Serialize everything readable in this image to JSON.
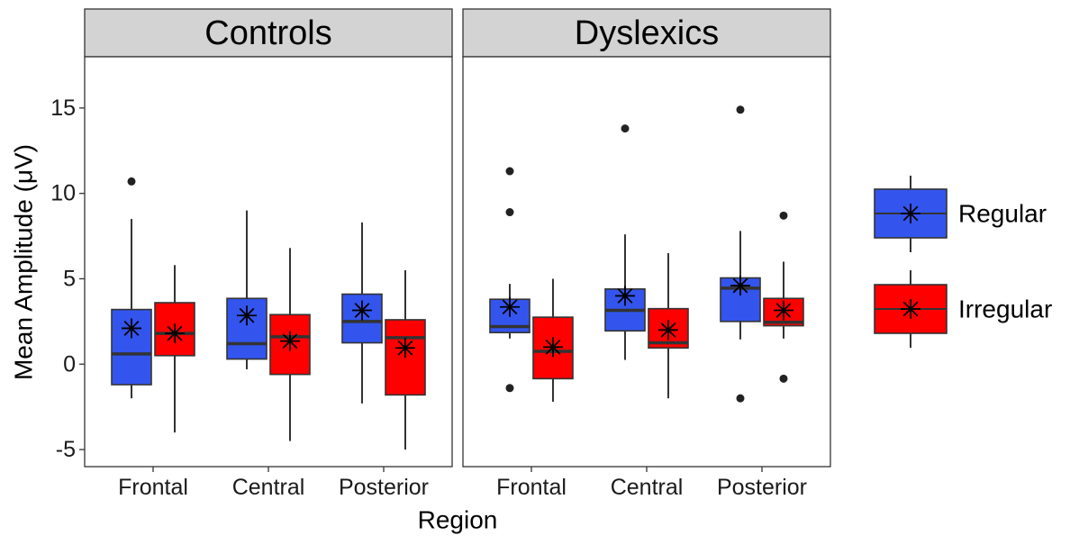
{
  "chart_data": {
    "type": "boxplot",
    "xlabel": "Region",
    "ylabel": "Mean Amplitude (μV)",
    "ylim": [
      -6,
      18
    ],
    "yticks": [
      -5,
      0,
      5,
      10,
      15
    ],
    "ytick_labels": [
      "-5",
      "0",
      "5",
      "10",
      "15"
    ],
    "categories": [
      "Frontal",
      "Central",
      "Posterior"
    ],
    "series": [
      {
        "name": "Regular",
        "color": "#3355ee"
      },
      {
        "name": "Irregular",
        "color": "#ff0000"
      }
    ],
    "legend_position": "right",
    "grid": false,
    "mean_marker": "asterisk",
    "panels": [
      {
        "title": "Controls",
        "groups": [
          {
            "category": "Frontal",
            "series": "Regular",
            "whisker_low": -2.0,
            "q1": -1.2,
            "median": 0.6,
            "q3": 3.2,
            "whisker_high": 8.5,
            "mean": 2.1,
            "outliers": [
              10.7
            ]
          },
          {
            "category": "Frontal",
            "series": "Irregular",
            "whisker_low": -4.0,
            "q1": 0.5,
            "median": 1.8,
            "q3": 3.6,
            "whisker_high": 5.8,
            "mean": 1.8,
            "outliers": []
          },
          {
            "category": "Central",
            "series": "Regular",
            "whisker_low": -0.3,
            "q1": 0.3,
            "median": 1.2,
            "q3": 3.85,
            "whisker_high": 9.0,
            "mean": 2.85,
            "outliers": []
          },
          {
            "category": "Central",
            "series": "Irregular",
            "whisker_low": -4.5,
            "q1": -0.6,
            "median": 1.6,
            "q3": 2.9,
            "whisker_high": 6.8,
            "mean": 1.35,
            "outliers": []
          },
          {
            "category": "Posterior",
            "series": "Regular",
            "whisker_low": -2.3,
            "q1": 1.25,
            "median": 2.5,
            "q3": 4.1,
            "whisker_high": 8.3,
            "mean": 3.15,
            "outliers": []
          },
          {
            "category": "Posterior",
            "series": "Irregular",
            "whisker_low": -5.0,
            "q1": -1.8,
            "median": 1.55,
            "q3": 2.6,
            "whisker_high": 5.5,
            "mean": 0.95,
            "outliers": []
          }
        ]
      },
      {
        "title": "Dyslexics",
        "groups": [
          {
            "category": "Frontal",
            "series": "Regular",
            "whisker_low": 1.5,
            "q1": 1.85,
            "median": 2.2,
            "q3": 3.8,
            "whisker_high": 4.7,
            "mean": 3.35,
            "outliers": [
              11.3,
              8.9,
              -1.4
            ]
          },
          {
            "category": "Frontal",
            "series": "Irregular",
            "whisker_low": -2.2,
            "q1": -0.85,
            "median": 0.75,
            "q3": 2.75,
            "whisker_high": 5.0,
            "mean": 1.0,
            "outliers": []
          },
          {
            "category": "Central",
            "series": "Regular",
            "whisker_low": 0.25,
            "q1": 1.95,
            "median": 3.15,
            "q3": 4.4,
            "whisker_high": 7.6,
            "mean": 4.0,
            "outliers": [
              13.8
            ]
          },
          {
            "category": "Central",
            "series": "Irregular",
            "whisker_low": -2.0,
            "q1": 0.95,
            "median": 1.25,
            "q3": 3.25,
            "whisker_high": 6.5,
            "mean": 2.0,
            "outliers": []
          },
          {
            "category": "Posterior",
            "series": "Regular",
            "whisker_low": 1.45,
            "q1": 2.5,
            "median": 4.45,
            "q3": 5.05,
            "whisker_high": 7.8,
            "mean": 4.6,
            "outliers": [
              14.9,
              -2.0
            ]
          },
          {
            "category": "Posterior",
            "series": "Irregular",
            "whisker_low": 1.5,
            "q1": 2.25,
            "median": 2.45,
            "q3": 3.85,
            "whisker_high": 6.0,
            "mean": 3.15,
            "outliers": [
              8.7,
              -0.85
            ]
          }
        ]
      }
    ]
  }
}
